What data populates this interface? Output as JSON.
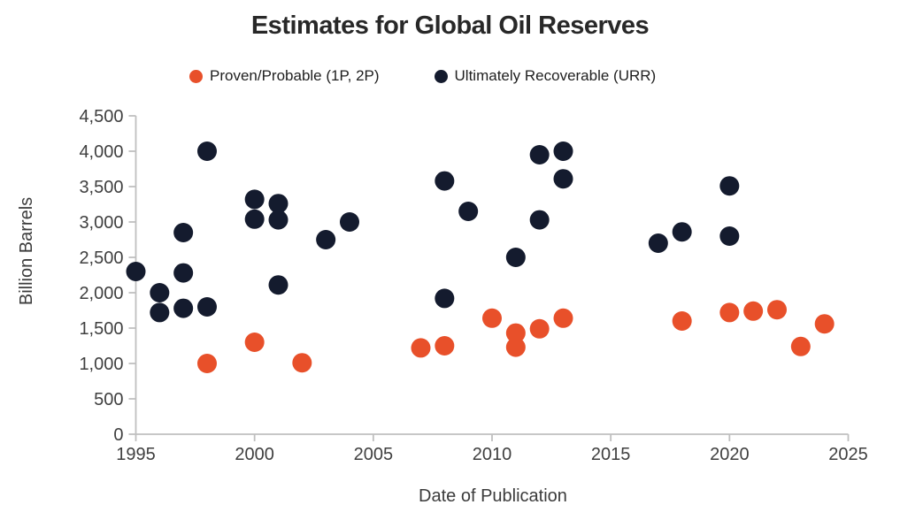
{
  "page": {
    "background": "#ffffff"
  },
  "chart_data": {
    "type": "scatter",
    "title": "Estimates for Global Oil Reserves",
    "xlabel": "Date of Publication",
    "ylabel": "Billion Barrels",
    "xlim": [
      1995,
      2025
    ],
    "ylim": [
      0,
      4500
    ],
    "x_tick_step": 5,
    "y_tick_step": 500,
    "x_tick_labels": [
      "1995",
      "2000",
      "2005",
      "2010",
      "2015",
      "2020",
      "2025"
    ],
    "y_tick_labels": [
      "0",
      "500",
      "1,000",
      "1,500",
      "2,000",
      "2,500",
      "3,000",
      "3,500",
      "4,000",
      "4,500"
    ],
    "grid": false,
    "legend_position": "top-center",
    "axis_color": "#BFBFBF",
    "tick_label_color": "#3F3F3F",
    "title_color": "#282828",
    "marker_radius": 11,
    "series": [
      {
        "name": "Proven/Probable (1P, 2P)",
        "color": "#E8502A",
        "marker": "circle",
        "points": [
          [
            1998,
            1000
          ],
          [
            2000,
            1300
          ],
          [
            2002,
            1010
          ],
          [
            2007,
            1220
          ],
          [
            2008,
            1250
          ],
          [
            2010,
            1640
          ],
          [
            2011,
            1430
          ],
          [
            2011,
            1230
          ],
          [
            2012,
            1490
          ],
          [
            2013,
            1640
          ],
          [
            2018,
            1600
          ],
          [
            2020,
            1720
          ],
          [
            2021,
            1740
          ],
          [
            2022,
            1760
          ],
          [
            2023,
            1240
          ],
          [
            2024,
            1560
          ]
        ]
      },
      {
        "name": "Ultimately Recoverable (URR)",
        "color": "#141B2E",
        "marker": "circle",
        "points": [
          [
            1995,
            2300
          ],
          [
            1996,
            2000
          ],
          [
            1996,
            1720
          ],
          [
            1997,
            2850
          ],
          [
            1997,
            2280
          ],
          [
            1997,
            1780
          ],
          [
            1998,
            4000
          ],
          [
            1998,
            1800
          ],
          [
            2000,
            3320
          ],
          [
            2000,
            3040
          ],
          [
            2001,
            3260
          ],
          [
            2001,
            3030
          ],
          [
            2001,
            2110
          ],
          [
            2003,
            2750
          ],
          [
            2004,
            3000
          ],
          [
            2008,
            3580
          ],
          [
            2008,
            1920
          ],
          [
            2009,
            3150
          ],
          [
            2011,
            2500
          ],
          [
            2012,
            3950
          ],
          [
            2012,
            3030
          ],
          [
            2013,
            4000
          ],
          [
            2013,
            3610
          ],
          [
            2017,
            2700
          ],
          [
            2018,
            2860
          ],
          [
            2020,
            3510
          ],
          [
            2020,
            2800
          ]
        ]
      }
    ]
  }
}
